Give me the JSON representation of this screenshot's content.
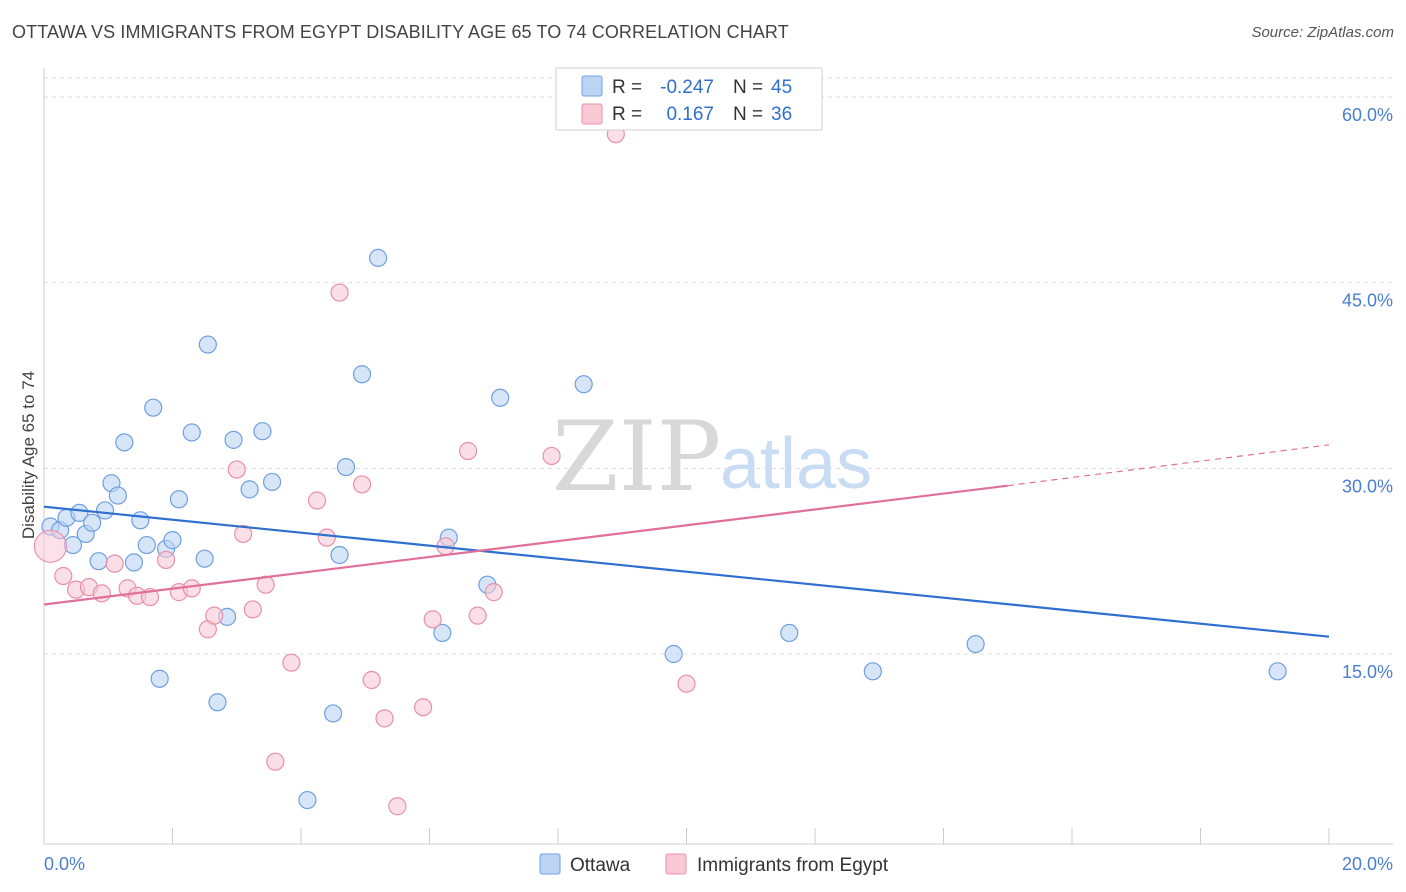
{
  "title": "OTTAWA VS IMMIGRANTS FROM EGYPT DISABILITY AGE 65 TO 74 CORRELATION CHART",
  "source": "Source: ZipAtlas.com",
  "watermark": {
    "zip": "ZIP",
    "atlas": "atlas"
  },
  "legend": {
    "r_label": "R =",
    "n_label": "N =",
    "rows": [
      {
        "r": "-0.247",
        "n": "45"
      },
      {
        "r": "0.167",
        "n": "36"
      }
    ]
  },
  "bottom_legend": [
    "Ottawa",
    "Immigrants from Egypt"
  ],
  "colors": {
    "ottawa_fill": "#bcd4f4",
    "ottawa_stroke": "#6f9fe0",
    "ottawa_line": "#2f6fd0",
    "egypt_fill": "#f9c9d6",
    "egypt_stroke": "#e890aa",
    "egypt_line": "#e0709a",
    "axis_label": "#4a7fd0"
  },
  "chart_data": {
    "type": "scatter",
    "title": "OTTAWA VS IMMIGRANTS FROM EGYPT DISABILITY AGE 65 TO 74 CORRELATION CHART",
    "xlabel": "",
    "ylabel": "Disability Age 65 to 74",
    "xlim": [
      0,
      20
    ],
    "ylim": [
      0,
      61
    ],
    "x_tick_labels": [
      "0.0%",
      "20.0%"
    ],
    "y_ticks": [
      15,
      30,
      45,
      60
    ],
    "y_tick_labels": [
      "15.0%",
      "30.0%",
      "45.0%",
      "60.0%"
    ],
    "grid": true,
    "legend_position": "top-center",
    "series": [
      {
        "name": "Ottawa",
        "r": -0.247,
        "n": 45,
        "trend": {
          "x": [
            0,
            20
          ],
          "y": [
            26.9,
            16.4
          ]
        },
        "points": [
          {
            "x": 0.1,
            "y": 25.3
          },
          {
            "x": 0.25,
            "y": 25.0
          },
          {
            "x": 0.35,
            "y": 26.0
          },
          {
            "x": 0.45,
            "y": 23.8
          },
          {
            "x": 0.55,
            "y": 26.4
          },
          {
            "x": 0.65,
            "y": 24.7
          },
          {
            "x": 0.75,
            "y": 25.6
          },
          {
            "x": 0.85,
            "y": 22.5
          },
          {
            "x": 0.95,
            "y": 26.6
          },
          {
            "x": 1.05,
            "y": 28.8
          },
          {
            "x": 1.15,
            "y": 27.8
          },
          {
            "x": 1.25,
            "y": 32.1
          },
          {
            "x": 1.4,
            "y": 22.4
          },
          {
            "x": 1.5,
            "y": 25.8
          },
          {
            "x": 1.6,
            "y": 23.8
          },
          {
            "x": 1.7,
            "y": 34.9
          },
          {
            "x": 1.8,
            "y": 13.0
          },
          {
            "x": 1.9,
            "y": 23.5
          },
          {
            "x": 2.0,
            "y": 24.2
          },
          {
            "x": 2.1,
            "y": 27.5
          },
          {
            "x": 2.3,
            "y": 32.9
          },
          {
            "x": 2.5,
            "y": 22.7
          },
          {
            "x": 2.55,
            "y": 40.0
          },
          {
            "x": 2.7,
            "y": 11.1
          },
          {
            "x": 2.85,
            "y": 18.0
          },
          {
            "x": 2.95,
            "y": 32.3
          },
          {
            "x": 3.2,
            "y": 28.3
          },
          {
            "x": 3.4,
            "y": 33.0
          },
          {
            "x": 3.55,
            "y": 28.9
          },
          {
            "x": 4.1,
            "y": 3.2
          },
          {
            "x": 4.5,
            "y": 10.2
          },
          {
            "x": 4.6,
            "y": 23.0
          },
          {
            "x": 4.7,
            "y": 30.1
          },
          {
            "x": 4.95,
            "y": 37.6
          },
          {
            "x": 5.2,
            "y": 47.0
          },
          {
            "x": 6.2,
            "y": 16.7
          },
          {
            "x": 6.3,
            "y": 24.4
          },
          {
            "x": 6.9,
            "y": 20.6
          },
          {
            "x": 7.1,
            "y": 35.7
          },
          {
            "x": 8.4,
            "y": 36.8
          },
          {
            "x": 9.8,
            "y": 15.0
          },
          {
            "x": 11.6,
            "y": 16.7
          },
          {
            "x": 12.9,
            "y": 13.6
          },
          {
            "x": 14.5,
            "y": 15.8
          },
          {
            "x": 19.2,
            "y": 13.6
          }
        ]
      },
      {
        "name": "Immigrants from Egypt",
        "r": 0.167,
        "n": 36,
        "trend": {
          "x": [
            0,
            15
          ],
          "y": [
            19.0,
            28.6
          ]
        },
        "trend_dashed": {
          "x": [
            15,
            20
          ],
          "y": [
            28.6,
            31.9
          ]
        },
        "points": [
          {
            "x": 0.1,
            "y": 23.7,
            "big": true
          },
          {
            "x": 0.3,
            "y": 21.3
          },
          {
            "x": 0.5,
            "y": 20.2
          },
          {
            "x": 0.7,
            "y": 20.4
          },
          {
            "x": 0.9,
            "y": 19.9
          },
          {
            "x": 1.1,
            "y": 22.3
          },
          {
            "x": 1.3,
            "y": 20.3
          },
          {
            "x": 1.45,
            "y": 19.7
          },
          {
            "x": 1.65,
            "y": 19.6
          },
          {
            "x": 1.9,
            "y": 22.6
          },
          {
            "x": 2.1,
            "y": 20.0
          },
          {
            "x": 2.3,
            "y": 20.3
          },
          {
            "x": 2.55,
            "y": 17.0
          },
          {
            "x": 2.65,
            "y": 18.1
          },
          {
            "x": 3.0,
            "y": 29.9
          },
          {
            "x": 3.1,
            "y": 24.7
          },
          {
            "x": 3.25,
            "y": 18.6
          },
          {
            "x": 3.45,
            "y": 20.6
          },
          {
            "x": 3.6,
            "y": 6.3
          },
          {
            "x": 3.85,
            "y": 14.3
          },
          {
            "x": 4.25,
            "y": 27.4
          },
          {
            "x": 4.4,
            "y": 24.4
          },
          {
            "x": 4.6,
            "y": 44.2
          },
          {
            "x": 4.95,
            "y": 28.7
          },
          {
            "x": 5.1,
            "y": 12.9
          },
          {
            "x": 5.3,
            "y": 9.8
          },
          {
            "x": 5.5,
            "y": 2.7
          },
          {
            "x": 5.9,
            "y": 10.7
          },
          {
            "x": 6.05,
            "y": 17.8
          },
          {
            "x": 6.25,
            "y": 23.7
          },
          {
            "x": 6.6,
            "y": 31.4
          },
          {
            "x": 6.75,
            "y": 18.1
          },
          {
            "x": 7.0,
            "y": 20.0
          },
          {
            "x": 7.9,
            "y": 31.0
          },
          {
            "x": 10.0,
            "y": 12.6
          },
          {
            "x": 8.9,
            "y": 57.0
          }
        ]
      }
    ]
  }
}
